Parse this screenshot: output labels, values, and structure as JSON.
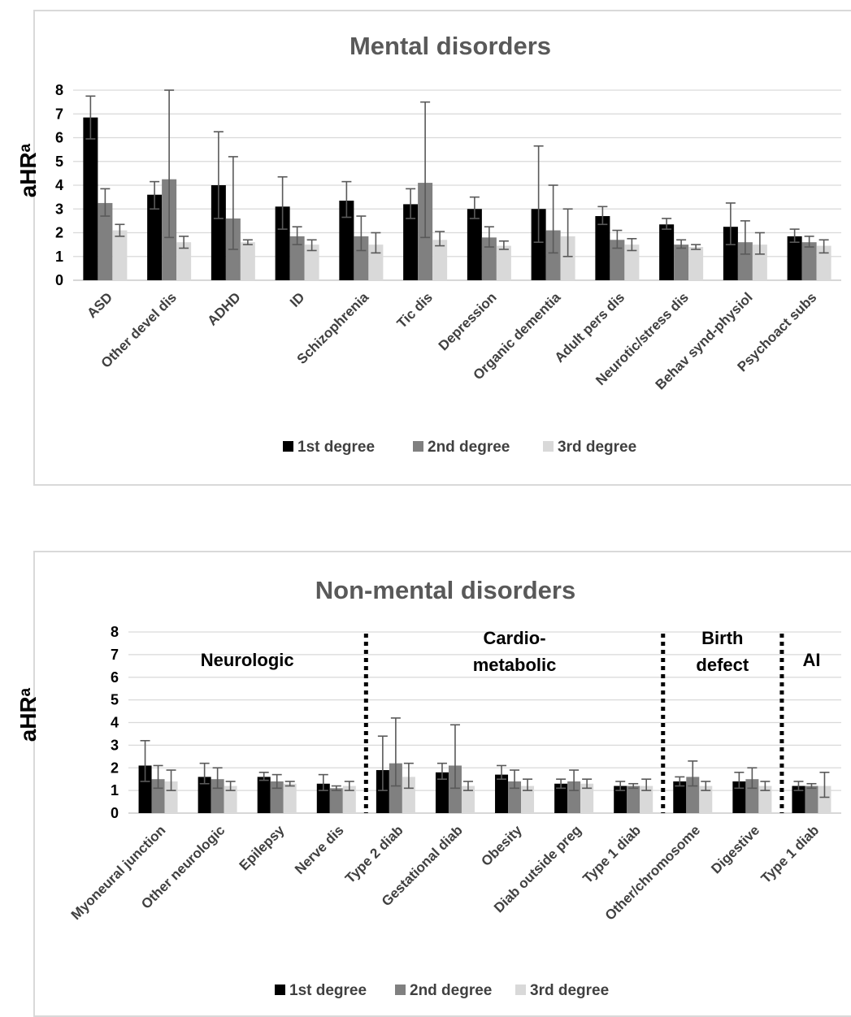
{
  "chart_data": [
    {
      "type": "bar",
      "title": "Mental disorders",
      "ylabel": "aHRᵃ",
      "ylim": [
        0,
        8
      ],
      "yticks": [
        0,
        1,
        2,
        3,
        4,
        5,
        6,
        7,
        8
      ],
      "grid": true,
      "legend_position": "bottom",
      "categories": [
        "ASD",
        "Other devel dis",
        "ADHD",
        "ID",
        "Schizophrenia",
        "Tic dis",
        "Depression",
        "Organic dementia",
        "Adult pers dis",
        "Neurotic/stress dis",
        "Behav synd-physiol",
        "Psychoact subs"
      ],
      "series": [
        {
          "name": "1st degree",
          "color": "#000000",
          "values": [
            6.85,
            3.6,
            4.0,
            3.1,
            3.35,
            3.2,
            3.0,
            3.0,
            2.7,
            2.35,
            2.25,
            1.85
          ],
          "ci_low": [
            5.95,
            3.0,
            2.6,
            2.15,
            2.65,
            2.6,
            2.6,
            1.6,
            2.35,
            2.15,
            1.5,
            1.6
          ],
          "ci_high": [
            7.75,
            4.15,
            6.25,
            4.35,
            4.15,
            3.85,
            3.5,
            5.65,
            3.1,
            2.6,
            3.25,
            2.15
          ]
        },
        {
          "name": "2nd degree",
          "color": "#808080",
          "values": [
            3.25,
            4.25,
            2.6,
            1.85,
            1.85,
            4.1,
            1.8,
            2.1,
            1.7,
            1.5,
            1.6,
            1.6
          ],
          "ci_low": [
            2.7,
            1.8,
            1.3,
            1.5,
            1.25,
            1.8,
            1.4,
            1.15,
            1.35,
            1.35,
            1.1,
            1.4
          ],
          "ci_high": [
            3.85,
            8.0,
            5.2,
            2.25,
            2.7,
            7.5,
            2.25,
            4.0,
            2.1,
            1.7,
            2.5,
            1.85
          ]
        },
        {
          "name": "3rd degree",
          "color": "#d9d9d9",
          "values": [
            2.1,
            1.6,
            1.6,
            1.5,
            1.5,
            1.7,
            1.45,
            1.85,
            1.5,
            1.4,
            1.5,
            1.45
          ],
          "ci_low": [
            1.85,
            1.35,
            1.5,
            1.25,
            1.15,
            1.45,
            1.3,
            1.0,
            1.25,
            1.3,
            1.1,
            1.15
          ],
          "ci_high": [
            2.35,
            1.85,
            1.7,
            1.7,
            2.0,
            2.05,
            1.65,
            3.0,
            1.75,
            1.5,
            2.0,
            1.7
          ]
        }
      ]
    },
    {
      "type": "bar",
      "title": "Non-mental disorders",
      "ylabel": "aHRᵃ",
      "ylim": [
        0,
        8
      ],
      "yticks": [
        0,
        1,
        2,
        3,
        4,
        5,
        6,
        7,
        8
      ],
      "grid": true,
      "legend_position": "bottom",
      "categories": [
        "Myoneural junction",
        "Other neurologic",
        "Epilepsy",
        "Nerve dis",
        "Type 2 diab",
        "Gestational diab",
        "Obesity",
        "Diab outside preg",
        "Type 1 diab",
        "Other/chromosome",
        "Digestive",
        "Type 1 diab"
      ],
      "sections": [
        {
          "label_lines": [
            "Neurologic"
          ],
          "start": 0,
          "end": 3
        },
        {
          "label_lines": [
            "Cardio-",
            "metabolic"
          ],
          "start": 4,
          "end": 8
        },
        {
          "label_lines": [
            "Birth",
            "defect"
          ],
          "start": 9,
          "end": 10
        },
        {
          "label_lines": [
            "AI"
          ],
          "start": 11,
          "end": 11
        }
      ],
      "series": [
        {
          "name": "1st degree",
          "color": "#000000",
          "values": [
            2.1,
            1.6,
            1.6,
            1.3,
            1.9,
            1.8,
            1.7,
            1.3,
            1.2,
            1.4,
            1.4,
            1.2
          ],
          "ci_low": [
            1.4,
            1.3,
            1.45,
            1.0,
            1.0,
            1.5,
            1.5,
            1.1,
            1.0,
            1.2,
            1.1,
            1.0
          ],
          "ci_high": [
            3.2,
            2.2,
            1.8,
            1.7,
            3.4,
            2.2,
            2.1,
            1.5,
            1.4,
            1.6,
            1.8,
            1.4
          ]
        },
        {
          "name": "2nd degree",
          "color": "#808080",
          "values": [
            1.5,
            1.5,
            1.4,
            1.1,
            2.2,
            2.1,
            1.4,
            1.4,
            1.2,
            1.6,
            1.5,
            1.2
          ],
          "ci_low": [
            1.1,
            1.1,
            1.1,
            1.0,
            1.2,
            1.1,
            1.1,
            1.0,
            1.1,
            1.2,
            1.1,
            1.1
          ],
          "ci_high": [
            2.1,
            2.0,
            1.7,
            1.2,
            4.2,
            3.9,
            1.9,
            1.9,
            1.3,
            2.3,
            2.0,
            1.3
          ]
        },
        {
          "name": "3rd degree",
          "color": "#d9d9d9",
          "values": [
            1.4,
            1.2,
            1.3,
            1.2,
            1.6,
            1.2,
            1.2,
            1.3,
            1.2,
            1.2,
            1.2,
            1.2
          ],
          "ci_low": [
            1.0,
            1.0,
            1.2,
            1.0,
            1.1,
            1.0,
            1.0,
            1.1,
            1.0,
            1.0,
            1.0,
            0.7
          ],
          "ci_high": [
            1.9,
            1.4,
            1.4,
            1.4,
            2.2,
            1.4,
            1.5,
            1.5,
            1.5,
            1.4,
            1.4,
            1.8
          ]
        }
      ]
    }
  ]
}
